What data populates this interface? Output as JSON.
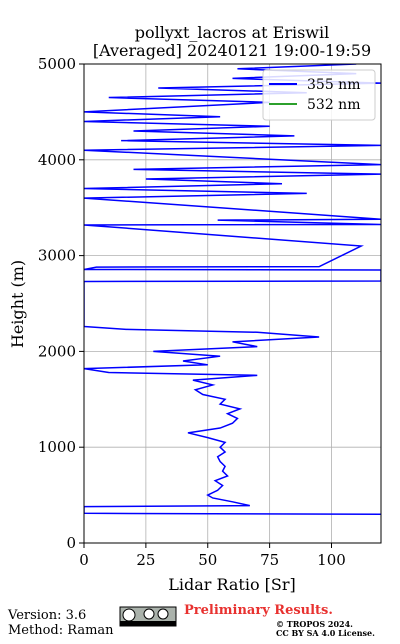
{
  "chart_data": {
    "type": "line",
    "title": "pollyxt_lacros at Eriswil",
    "subtitle": "[Averaged] 20240121 19:00-19:59",
    "x_label": "Lidar Ratio [Sr]",
    "y_label": "Height (m)",
    "xlim": [
      0,
      120
    ],
    "xticks": [
      0,
      25,
      50,
      75,
      100
    ],
    "ylim": [
      0,
      5000
    ],
    "yticks": [
      0,
      1000,
      2000,
      3000,
      4000,
      5000
    ],
    "grid": true,
    "legend": "upper right",
    "y": [
      300,
      310,
      380,
      390,
      430,
      470,
      500,
      550,
      600,
      650,
      700,
      750,
      800,
      850,
      900,
      950,
      1000,
      1050,
      1100,
      1150,
      1200,
      1250,
      1300,
      1350,
      1400,
      1450,
      1500,
      1550,
      1600,
      1650,
      1700,
      1750,
      1780,
      1820,
      1860,
      1900,
      1950,
      2000,
      2050,
      2100,
      2150,
      2200,
      2230,
      2260,
      2730,
      2735,
      2850,
      2855,
      2880,
      2885,
      3100,
      3320,
      3325,
      3370,
      3380,
      3600,
      3650,
      3700,
      3750,
      3800,
      3850,
      3900,
      3950,
      4100,
      4150,
      4200,
      4250,
      4300,
      4350,
      4400,
      4450,
      4500,
      4600,
      4650,
      4700,
      4750,
      4800,
      4850,
      4900,
      4950,
      5000
    ],
    "series": [
      {
        "name": "355 nm",
        "color": "#0000ff",
        "values": [
          120,
          0,
          0,
          67,
          60,
          52,
          50,
          54,
          56,
          53,
          58,
          56,
          57,
          55,
          54,
          57,
          55,
          57,
          50,
          42,
          55,
          60,
          62,
          58,
          63,
          55,
          57,
          48,
          45,
          52,
          44,
          70,
          10,
          0,
          50,
          40,
          55,
          28,
          70,
          60,
          95,
          70,
          17,
          0,
          0,
          120,
          120,
          0,
          5,
          95,
          112,
          0,
          120,
          54,
          120,
          0,
          90,
          0,
          80,
          25,
          120,
          20,
          120,
          0,
          120,
          15,
          85,
          20,
          75,
          0,
          55,
          0,
          75,
          10,
          90,
          30,
          120,
          60,
          110,
          62,
          110
        ]
      },
      {
        "name": "532 nm",
        "color": "#2ca02c",
        "values": [
          null,
          null,
          null,
          null,
          null,
          null,
          null,
          null,
          null,
          null,
          null,
          null,
          null,
          null,
          null,
          null,
          null,
          null,
          null,
          null,
          null,
          null,
          null,
          null,
          null,
          null,
          null,
          null,
          null,
          null,
          null,
          null,
          null,
          null,
          null,
          null,
          null,
          null,
          null,
          null,
          null,
          null,
          null,
          null,
          null,
          null,
          null,
          null,
          null,
          null,
          null,
          null,
          null,
          null,
          null,
          null,
          null,
          null,
          null,
          null,
          null,
          null,
          null,
          null,
          null,
          null,
          null,
          null,
          null,
          null,
          null,
          null,
          null,
          null,
          null,
          null,
          null,
          null,
          null,
          null,
          null
        ]
      }
    ]
  },
  "footer": {
    "version": "Version: 3.6",
    "method": "Method: Raman",
    "status": "Preliminary Results.",
    "copyright": "© TROPOS 2024.",
    "license": "CC BY SA 4.0 License."
  }
}
